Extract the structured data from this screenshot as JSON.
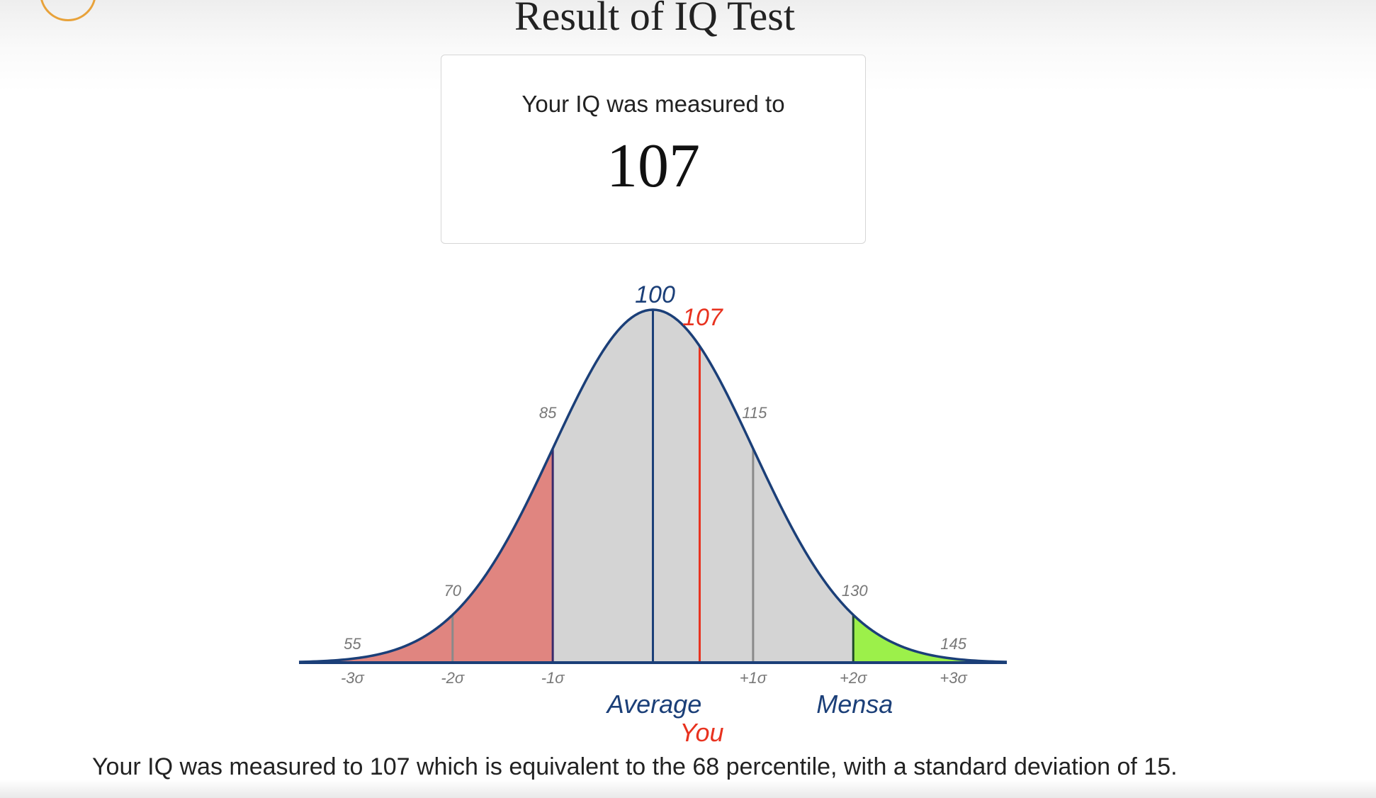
{
  "header": {
    "title": "Result of IQ Test",
    "logo_icon": "circle-logo-icon"
  },
  "result_card": {
    "caption": "Your IQ was measured to",
    "score": "107"
  },
  "summary": "Your IQ was measured to 107 which is equivalent to the 68 percentile, with a standard deviation of 15.",
  "colors": {
    "accent_logo": "#e8a23a",
    "curve": "#1b3f78",
    "below_average_fill": "#e08580",
    "average_fill": "#d4d4d4",
    "mensa_fill": "#9cf04a",
    "you_marker": "#e8321f",
    "tick_text": "#777777"
  },
  "chart_data": {
    "type": "area",
    "distribution": "normal",
    "mean": 100,
    "standard_deviation": 15,
    "score": 107,
    "percentile": 68,
    "xlim": [
      47,
      153
    ],
    "boundaries": [
      55,
      70,
      85,
      100,
      115,
      130,
      145
    ],
    "value_labels": [
      "55",
      "70",
      "85",
      "100",
      "115",
      "130",
      "145"
    ],
    "sigma_labels": [
      {
        "value": 55,
        "label": "-3σ"
      },
      {
        "value": 70,
        "label": "-2σ"
      },
      {
        "value": 85,
        "label": "-1σ"
      },
      {
        "value": 115,
        "label": "+1σ"
      },
      {
        "value": 130,
        "label": "+2σ"
      },
      {
        "value": 145,
        "label": "+3σ"
      }
    ],
    "regions": [
      {
        "from": 47,
        "to": 85,
        "color": "#e08580"
      },
      {
        "from": 85,
        "to": 130,
        "color": "#d4d4d4"
      },
      {
        "from": 130,
        "to": 153,
        "color": "#9cf04a"
      }
    ],
    "markers": [
      {
        "value": 100,
        "label": "100",
        "caption": "Average",
        "color": "#1b3f78"
      },
      {
        "value": 107,
        "label": "107",
        "caption": "You",
        "color": "#e8321f"
      },
      {
        "value": 130,
        "caption": "Mensa",
        "color": "#1b3f78"
      }
    ]
  }
}
